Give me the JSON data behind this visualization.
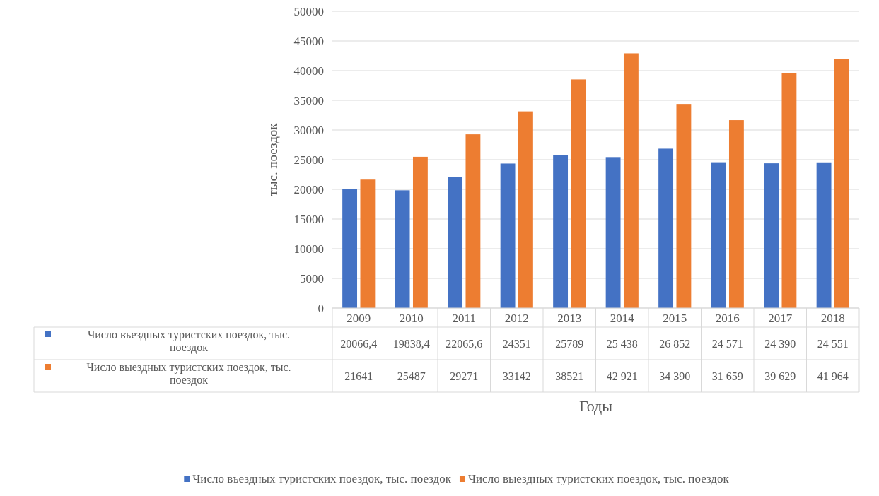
{
  "chart_data": {
    "type": "bar",
    "xlabel": "Годы",
    "ylabel": "тыс. поездок",
    "categories": [
      "2009",
      "2010",
      "2011",
      "2012",
      "2013",
      "2014",
      "2015",
      "2016",
      "2017",
      "2018"
    ],
    "series": [
      {
        "name": "Число въездных туристских поездок, тыс. поездок",
        "color": "#4472c4",
        "values": [
          20066.4,
          19838.4,
          22065.6,
          24351,
          25789,
          25438,
          26852,
          24571,
          24390,
          24551
        ],
        "value_labels": [
          "20066,4",
          "19838,4",
          "22065,6",
          "24351",
          "25789",
          "25 438",
          "26 852",
          "24 571",
          "24 390",
          "24 551"
        ]
      },
      {
        "name": "Число выездных туристских поездок, тыс. поездок",
        "color": "#ed7d31",
        "values": [
          21641,
          25487,
          29271,
          33142,
          38521,
          42921,
          34390,
          31659,
          39629,
          41964
        ],
        "value_labels": [
          "21641",
          "25487",
          "29271",
          "33142",
          "38521",
          "42 921",
          "34 390",
          "31 659",
          "39 629",
          "41 964"
        ]
      }
    ],
    "ylim": [
      0,
      50000
    ],
    "yticks": [
      0,
      5000,
      10000,
      15000,
      20000,
      25000,
      30000,
      35000,
      40000,
      45000,
      50000
    ],
    "grid": "y",
    "legend": "bottom"
  }
}
